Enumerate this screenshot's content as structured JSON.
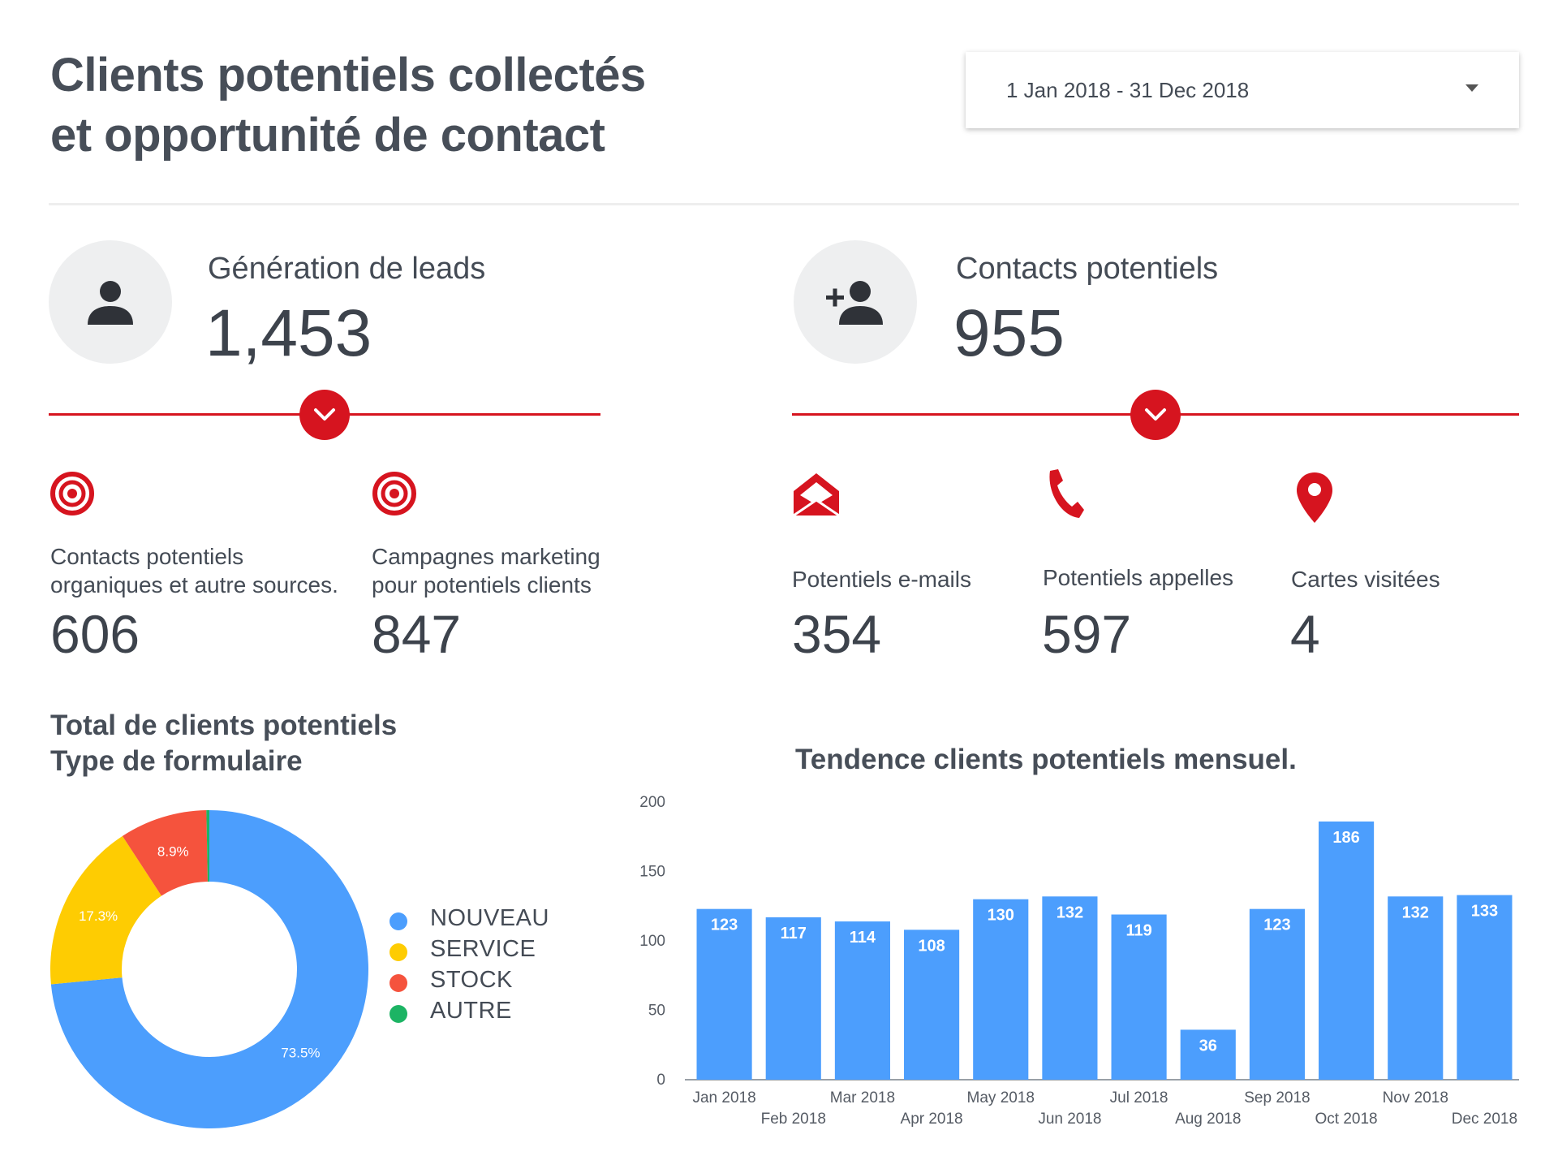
{
  "header": {
    "title_line1": "Clients potentiels collectés",
    "title_line2": "et opportunité de contact",
    "date_range": "1 Jan 2018 - 31 Dec 2018",
    "dropdown_icon": "caret-down-icon"
  },
  "left_kpi": {
    "icon": "person-icon",
    "label": "Génération de leads",
    "value": "1,453",
    "metrics": [
      {
        "icon": "target-icon",
        "label_line1": "Contacts potentiels",
        "label_line2": "organiques et autre sources.",
        "value": "606"
      },
      {
        "icon": "target-icon",
        "label_line1": "Campagnes marketing",
        "label_line2": "pour potentiels clients",
        "value": "847"
      }
    ]
  },
  "right_kpi": {
    "icon": "person-add-icon",
    "label": "Contacts potentiels",
    "value": "955",
    "metrics": [
      {
        "icon": "envelope-open-icon",
        "label": "Potentiels e-mails",
        "value": "354"
      },
      {
        "icon": "phone-icon",
        "label": "Potentiels appelles",
        "value": "597"
      },
      {
        "icon": "map-pin-icon",
        "label": "Cartes visitées",
        "value": "4"
      }
    ]
  },
  "colors": {
    "accent_red": "#d6141f",
    "bar_blue": "#4c9efd",
    "nouveau": "#4c9efd",
    "service": "#fecc02",
    "stock": "#f5533d",
    "autre": "#1cb464"
  },
  "chart_data": [
    {
      "type": "pie",
      "title_line1": "Total de clients potentiels",
      "title_line2": "Type de formulaire",
      "categories": [
        "NOUVEAU",
        "SERVICE",
        "STOCK",
        "AUTRE"
      ],
      "values": [
        73.5,
        17.3,
        8.9,
        0.3
      ],
      "labels": [
        "73.5%",
        "17.3%",
        "8.9%",
        ""
      ],
      "colors": [
        "#4c9efd",
        "#fecc02",
        "#f5533d",
        "#1cb464"
      ],
      "donut": true,
      "legend": "right"
    },
    {
      "type": "bar",
      "title": "Tendence clients potentiels mensuel.",
      "categories": [
        "Jan 2018",
        "Feb 2018",
        "Mar 2018",
        "Apr 2018",
        "May 2018",
        "Jun 2018",
        "Jul 2018",
        "Aug 2018",
        "Sep 2018",
        "Oct 2018",
        "Nov 2018",
        "Dec 2018"
      ],
      "values": [
        123,
        117,
        114,
        108,
        130,
        132,
        119,
        36,
        123,
        186,
        132,
        133
      ],
      "yticks": [
        "0",
        "50",
        "100",
        "150",
        "200"
      ],
      "ylim": [
        0,
        200
      ],
      "grid": false,
      "color": "#4c9efd"
    }
  ]
}
